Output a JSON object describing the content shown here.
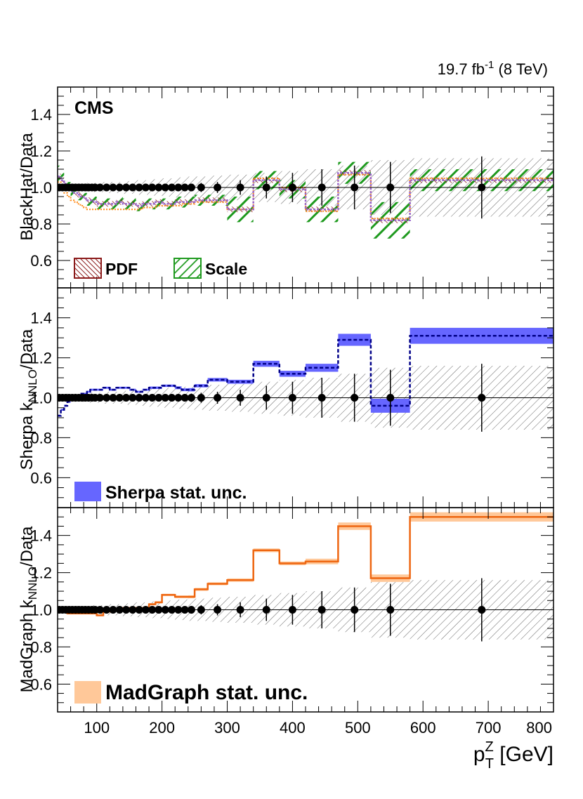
{
  "header": {
    "lumi": "19.7 fb",
    "lumi_sup": "-1",
    "energy": " (8 TeV)"
  },
  "experiment_label": "CMS",
  "x_axis": {
    "label_main": "p",
    "label_sup": "Z",
    "label_sub": "T",
    "label_unit": " [GeV]",
    "range": [
      40,
      800
    ],
    "ticks": [
      100,
      200,
      300,
      400,
      500,
      600,
      700,
      800
    ],
    "tick_labels": [
      "100",
      "200",
      "300",
      "400",
      "500",
      "600",
      "700",
      "800"
    ]
  },
  "colors": {
    "pdf": "#8b1a1a",
    "scale": "#1f9a1f",
    "sherpa": "#6666ff",
    "sherpa_line": "#000088",
    "madgraph_band": "#ffc899",
    "madgraph_line": "#ee6611",
    "data": "#000000",
    "hatch": "#555555"
  },
  "chart_data": [
    {
      "type": "line",
      "panel": "top",
      "ylabel": "BlackHat/Data",
      "ylim": [
        0.45,
        1.55
      ],
      "yticks": [
        0.6,
        0.8,
        1.0,
        1.2,
        1.4
      ],
      "ytick_labels": [
        "0.6",
        "0.8",
        "1.0",
        "1.2",
        "1.4"
      ],
      "legend": [
        {
          "label": "PDF",
          "style": "hatch-pdf"
        },
        {
          "label": "Scale",
          "style": "hatch-scale"
        }
      ],
      "bin_edges": [
        40,
        45,
        50,
        55,
        60,
        65,
        70,
        75,
        80,
        85,
        90,
        95,
        100,
        110,
        120,
        130,
        140,
        150,
        160,
        170,
        180,
        190,
        200,
        210,
        220,
        230,
        240,
        250,
        270,
        300,
        340,
        380,
        420,
        470,
        520,
        580,
        800
      ],
      "data_x": [
        42.5,
        47.5,
        52.5,
        57.5,
        62.5,
        67.5,
        72.5,
        77.5,
        82.5,
        87.5,
        92.5,
        97.5,
        105,
        115,
        125,
        135,
        145,
        155,
        165,
        175,
        185,
        195,
        205,
        215,
        225,
        235,
        245,
        260,
        285,
        320,
        360,
        400,
        445,
        495,
        550,
        690
      ],
      "data_y": [
        1,
        1,
        1,
        1,
        1,
        1,
        1,
        1,
        1,
        1,
        1,
        1,
        1,
        1,
        1,
        1,
        1,
        1,
        1,
        1,
        1,
        1,
        1,
        1,
        1,
        1,
        1,
        1,
        1,
        1,
        1,
        1,
        1,
        1,
        1,
        1
      ],
      "data_err": [
        0.003,
        0.003,
        0.003,
        0.003,
        0.003,
        0.003,
        0.003,
        0.004,
        0.004,
        0.004,
        0.004,
        0.004,
        0.004,
        0.005,
        0.005,
        0.006,
        0.006,
        0.007,
        0.008,
        0.009,
        0.01,
        0.012,
        0.013,
        0.015,
        0.017,
        0.019,
        0.021,
        0.025,
        0.03,
        0.04,
        0.06,
        0.08,
        0.1,
        0.12,
        0.14,
        0.17
      ],
      "data_unc_band": [
        0.02,
        0.02,
        0.02,
        0.02,
        0.02,
        0.02,
        0.02,
        0.02,
        0.02,
        0.025,
        0.025,
        0.025,
        0.025,
        0.03,
        0.03,
        0.03,
        0.035,
        0.035,
        0.04,
        0.04,
        0.045,
        0.045,
        0.05,
        0.05,
        0.055,
        0.055,
        0.06,
        0.06,
        0.065,
        0.07,
        0.08,
        0.09,
        0.1,
        0.12,
        0.15,
        0.16
      ],
      "series": [
        {
          "name": "BlackHat",
          "style": "dotted-purple",
          "values": [
            1.06,
            1.04,
            1.02,
            1.0,
            0.98,
            0.97,
            0.96,
            0.95,
            0.94,
            0.93,
            0.93,
            0.92,
            0.91,
            0.91,
            0.91,
            0.92,
            0.91,
            0.91,
            0.9,
            0.91,
            0.91,
            0.92,
            0.91,
            0.91,
            0.92,
            0.92,
            0.92,
            0.93,
            0.93,
            0.88,
            1.04,
            0.99,
            0.88,
            1.08,
            0.82,
            1.04
          ]
        },
        {
          "name": "BlackHat (scale variation)",
          "style": "dotted-orange",
          "values": [
            1.03,
            1.0,
            0.97,
            0.95,
            0.93,
            0.92,
            0.91,
            0.9,
            0.89,
            0.88,
            0.88,
            0.88,
            0.88,
            0.88,
            0.88,
            0.88,
            0.88,
            0.88,
            0.88,
            0.89,
            0.89,
            0.9,
            0.9,
            0.9,
            0.9,
            0.91,
            0.91,
            0.92,
            0.92,
            0.88,
            1.05,
            1.0,
            0.87,
            1.07,
            0.83,
            1.05
          ]
        }
      ],
      "pdf_halfwidth": 0.015,
      "scale_halfwidth": [
        0.06,
        0.04,
        0.03,
        0.03,
        0.03,
        0.03,
        0.03,
        0.03,
        0.03,
        0.03,
        0.03,
        0.03,
        0.03,
        0.03,
        0.03,
        0.03,
        0.03,
        0.03,
        0.03,
        0.03,
        0.03,
        0.03,
        0.03,
        0.03,
        0.03,
        0.03,
        0.03,
        0.03,
        0.03,
        0.07,
        0.05,
        0.05,
        0.07,
        0.06,
        0.1,
        0.06
      ]
    },
    {
      "type": "line",
      "panel": "middle",
      "ylabel_main": "Sherpa k",
      "ylabel_sub": "NNLO",
      "ylabel_tail": "/Data",
      "ylim": [
        0.45,
        1.55
      ],
      "yticks": [
        0.6,
        0.8,
        1.0,
        1.2,
        1.4
      ],
      "ytick_labels": [
        "0.6",
        "0.8",
        "1.0",
        "1.2",
        "1.4"
      ],
      "legend": [
        {
          "label": "Sherpa stat. unc.",
          "style": "filled-blue"
        }
      ],
      "bin_edges": [
        40,
        45,
        50,
        55,
        60,
        65,
        70,
        75,
        80,
        85,
        90,
        95,
        100,
        110,
        120,
        130,
        140,
        150,
        160,
        170,
        180,
        190,
        200,
        210,
        220,
        230,
        240,
        250,
        270,
        300,
        340,
        380,
        420,
        470,
        520,
        580,
        800
      ],
      "data_x": [
        42.5,
        47.5,
        52.5,
        57.5,
        62.5,
        67.5,
        72.5,
        77.5,
        82.5,
        87.5,
        92.5,
        97.5,
        105,
        115,
        125,
        135,
        145,
        155,
        165,
        175,
        185,
        195,
        205,
        215,
        225,
        235,
        245,
        260,
        285,
        320,
        360,
        400,
        445,
        495,
        550,
        690
      ],
      "data_y": [
        1,
        1,
        1,
        1,
        1,
        1,
        1,
        1,
        1,
        1,
        1,
        1,
        1,
        1,
        1,
        1,
        1,
        1,
        1,
        1,
        1,
        1,
        1,
        1,
        1,
        1,
        1,
        1,
        1,
        1,
        1,
        1,
        1,
        1,
        1,
        1
      ],
      "data_err": [
        0.003,
        0.003,
        0.003,
        0.003,
        0.003,
        0.003,
        0.003,
        0.004,
        0.004,
        0.004,
        0.004,
        0.004,
        0.004,
        0.005,
        0.005,
        0.006,
        0.006,
        0.007,
        0.008,
        0.009,
        0.01,
        0.012,
        0.013,
        0.015,
        0.017,
        0.019,
        0.021,
        0.025,
        0.03,
        0.04,
        0.06,
        0.08,
        0.1,
        0.12,
        0.14,
        0.17
      ],
      "data_unc_band": [
        0.02,
        0.02,
        0.02,
        0.02,
        0.02,
        0.02,
        0.02,
        0.02,
        0.02,
        0.025,
        0.025,
        0.025,
        0.025,
        0.03,
        0.03,
        0.03,
        0.035,
        0.035,
        0.04,
        0.04,
        0.045,
        0.045,
        0.05,
        0.05,
        0.055,
        0.055,
        0.06,
        0.06,
        0.065,
        0.07,
        0.08,
        0.09,
        0.1,
        0.12,
        0.15,
        0.16
      ],
      "series": [
        {
          "name": "Sherpa",
          "style": "dashed-navy",
          "values": [
            0.91,
            0.94,
            0.96,
            0.98,
            0.99,
            1.0,
            1.01,
            1.02,
            1.02,
            1.03,
            1.04,
            1.04,
            1.04,
            1.05,
            1.04,
            1.05,
            1.05,
            1.04,
            1.03,
            1.04,
            1.05,
            1.05,
            1.06,
            1.06,
            1.05,
            1.04,
            1.04,
            1.06,
            1.09,
            1.08,
            1.17,
            1.12,
            1.15,
            1.29,
            0.96,
            1.31
          ]
        }
      ],
      "band_halfwidth": [
        0.005,
        0.005,
        0.005,
        0.005,
        0.005,
        0.005,
        0.005,
        0.005,
        0.005,
        0.005,
        0.005,
        0.005,
        0.005,
        0.005,
        0.005,
        0.005,
        0.005,
        0.005,
        0.005,
        0.005,
        0.006,
        0.006,
        0.006,
        0.006,
        0.007,
        0.007,
        0.008,
        0.008,
        0.009,
        0.01,
        0.015,
        0.015,
        0.02,
        0.03,
        0.035,
        0.04
      ]
    },
    {
      "type": "line",
      "panel": "bottom",
      "ylabel_main": "MadGraph k",
      "ylabel_sub": "NNLO",
      "ylabel_tail": "/Data",
      "ylim": [
        0.45,
        1.55
      ],
      "yticks": [
        0.6,
        0.8,
        1.0,
        1.2,
        1.4
      ],
      "ytick_labels": [
        "0.6",
        "0.8",
        "1.0",
        "1.2",
        "1.4"
      ],
      "legend": [
        {
          "label": "MadGraph stat. unc.",
          "style": "filled-orange"
        }
      ],
      "bin_edges": [
        40,
        45,
        50,
        55,
        60,
        65,
        70,
        75,
        80,
        85,
        90,
        95,
        100,
        110,
        120,
        130,
        140,
        150,
        160,
        170,
        180,
        190,
        200,
        210,
        220,
        230,
        240,
        250,
        270,
        300,
        340,
        380,
        420,
        470,
        520,
        580,
        800
      ],
      "data_x": [
        42.5,
        47.5,
        52.5,
        57.5,
        62.5,
        67.5,
        72.5,
        77.5,
        82.5,
        87.5,
        92.5,
        97.5,
        105,
        115,
        125,
        135,
        145,
        155,
        165,
        175,
        185,
        195,
        205,
        215,
        225,
        235,
        245,
        260,
        285,
        320,
        360,
        400,
        445,
        495,
        550,
        690
      ],
      "data_y": [
        1,
        1,
        1,
        1,
        1,
        1,
        1,
        1,
        1,
        1,
        1,
        1,
        1,
        1,
        1,
        1,
        1,
        1,
        1,
        1,
        1,
        1,
        1,
        1,
        1,
        1,
        1,
        1,
        1,
        1,
        1,
        1,
        1,
        1,
        1,
        1
      ],
      "data_err": [
        0.003,
        0.003,
        0.003,
        0.003,
        0.003,
        0.003,
        0.003,
        0.004,
        0.004,
        0.004,
        0.004,
        0.004,
        0.004,
        0.005,
        0.005,
        0.006,
        0.006,
        0.007,
        0.008,
        0.009,
        0.01,
        0.012,
        0.013,
        0.015,
        0.017,
        0.019,
        0.021,
        0.025,
        0.03,
        0.04,
        0.06,
        0.08,
        0.1,
        0.12,
        0.14,
        0.17
      ],
      "data_unc_band": [
        0.02,
        0.02,
        0.02,
        0.02,
        0.02,
        0.02,
        0.02,
        0.02,
        0.02,
        0.025,
        0.025,
        0.025,
        0.025,
        0.03,
        0.03,
        0.03,
        0.035,
        0.035,
        0.04,
        0.04,
        0.045,
        0.045,
        0.05,
        0.05,
        0.055,
        0.055,
        0.06,
        0.06,
        0.065,
        0.07,
        0.08,
        0.09,
        0.1,
        0.12,
        0.15,
        0.16
      ],
      "series": [
        {
          "name": "MadGraph",
          "style": "solid-orange",
          "values": [
            0.99,
            0.99,
            0.99,
            0.98,
            0.98,
            0.98,
            0.98,
            0.98,
            0.98,
            0.98,
            0.98,
            0.98,
            0.97,
            0.99,
            1.0,
            1.0,
            1.01,
            1.01,
            1.01,
            1.01,
            1.03,
            1.04,
            1.08,
            1.08,
            1.07,
            1.07,
            1.07,
            1.11,
            1.14,
            1.16,
            1.32,
            1.25,
            1.26,
            1.45,
            1.17,
            1.5
          ]
        }
      ],
      "band_halfwidth": [
        0.005,
        0.005,
        0.005,
        0.005,
        0.005,
        0.005,
        0.005,
        0.005,
        0.005,
        0.005,
        0.005,
        0.005,
        0.005,
        0.005,
        0.005,
        0.005,
        0.005,
        0.005,
        0.005,
        0.005,
        0.006,
        0.006,
        0.006,
        0.006,
        0.007,
        0.007,
        0.008,
        0.008,
        0.008,
        0.009,
        0.01,
        0.01,
        0.015,
        0.02,
        0.02,
        0.025
      ]
    }
  ]
}
